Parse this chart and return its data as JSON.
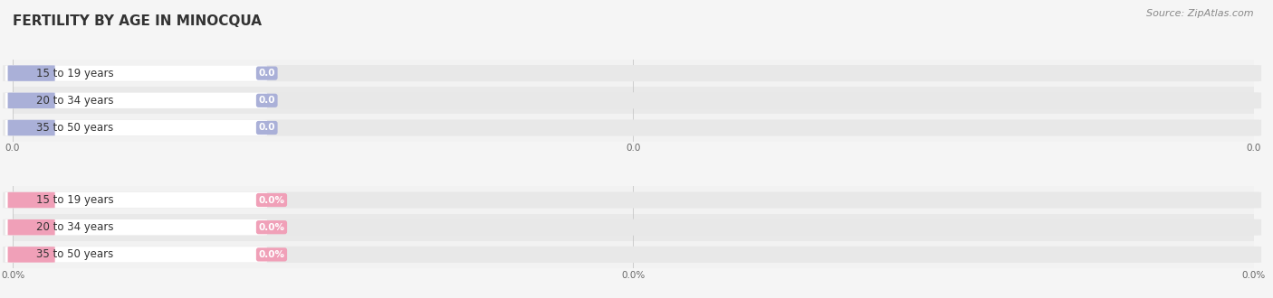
{
  "title": "FERTILITY BY AGE IN MINOCQUA",
  "source_text": "Source: ZipAtlas.com",
  "groups": [
    {
      "categories": [
        "15 to 19 years",
        "20 to 34 years",
        "35 to 50 years"
      ],
      "values": [
        0.0,
        0.0,
        0.0
      ],
      "bar_color": "#aab0d8",
      "circle_color": "#aab0d8",
      "value_bg_color": "#b8bede",
      "is_percent": false,
      "value_format": "0.0",
      "tick_labels": [
        "0.0",
        "0.0",
        "0.0"
      ]
    },
    {
      "categories": [
        "15 to 19 years",
        "20 to 34 years",
        "35 to 50 years"
      ],
      "values": [
        0.0,
        0.0,
        0.0
      ],
      "bar_color": "#f0a0b8",
      "circle_color": "#f0a0b8",
      "value_bg_color": "#f0a0b8",
      "is_percent": true,
      "value_format": "0.0%",
      "tick_labels": [
        "0.0%",
        "0.0%",
        "0.0%"
      ]
    }
  ],
  "fig_width": 14.06,
  "fig_height": 3.3,
  "dpi": 100,
  "bg_color": "#f5f5f5",
  "track_color": "#e8e8e8",
  "pill_bg_color": "#ffffff",
  "row_odd_color": "#f2f2f2",
  "row_even_color": "#e9e9e9",
  "title_fontsize": 11,
  "label_fontsize": 8.5,
  "value_fontsize": 7.5,
  "source_fontsize": 8,
  "tick_fontsize": 7.5
}
